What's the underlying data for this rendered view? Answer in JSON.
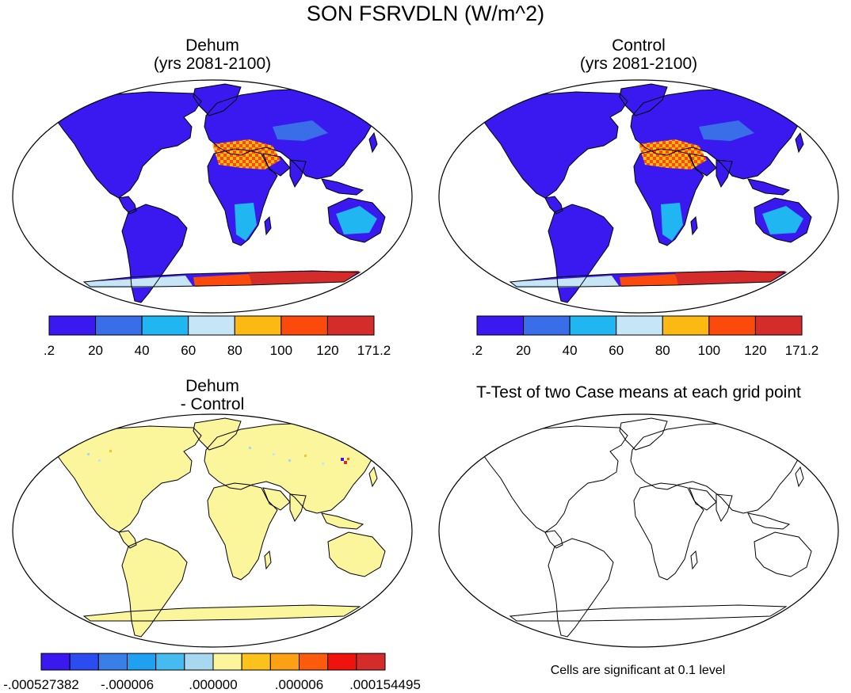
{
  "title": "SON FSRVDLN (W/m^2)",
  "panels": [
    {
      "title_line1": "Dehum",
      "title_line2": "(yrs 2081-2100)"
    },
    {
      "title_line1": "Control",
      "title_line2": "(yrs 2081-2100)"
    },
    {
      "title_line1": "Dehum",
      "title_line2": "- Control"
    },
    {
      "title_line1": "T-Test of two Case means at each grid point",
      "title_line2": ""
    }
  ],
  "colorbar_abs": {
    "labels": [
      ".2",
      "20",
      "40",
      "60",
      "80",
      "100",
      "120",
      "171.2"
    ],
    "colors": [
      "#3a18f0",
      "#3a6ee8",
      "#1fb6f2",
      "#c6e6f7",
      "#fcb913",
      "#fc4a0c",
      "#d42b2b"
    ]
  },
  "colorbar_diff": {
    "labels": [
      "-.000527382",
      "-.000006",
      ".000000",
      ".000006",
      ".000154495"
    ],
    "colors": [
      "#3a18f0",
      "#2a4cf0",
      "#3a7ee8",
      "#1fa0f0",
      "#45bbf0",
      "#a8d8f0",
      "#fbf59c",
      "#fcc21c",
      "#fca014",
      "#fc5a0c",
      "#f0120c",
      "#d42b2b"
    ]
  },
  "colors": {
    "low": "#3a18f0",
    "mid_low": "#3a6ee8",
    "light_blue": "#1fb6f2",
    "pale_blue": "#c6e6f7",
    "orange": "#fcb913",
    "red_orange": "#fc4a0c",
    "red": "#d42b2b",
    "pale_yellow": "#fbf59c"
  },
  "note": "Cells are significant at 0.1 level"
}
